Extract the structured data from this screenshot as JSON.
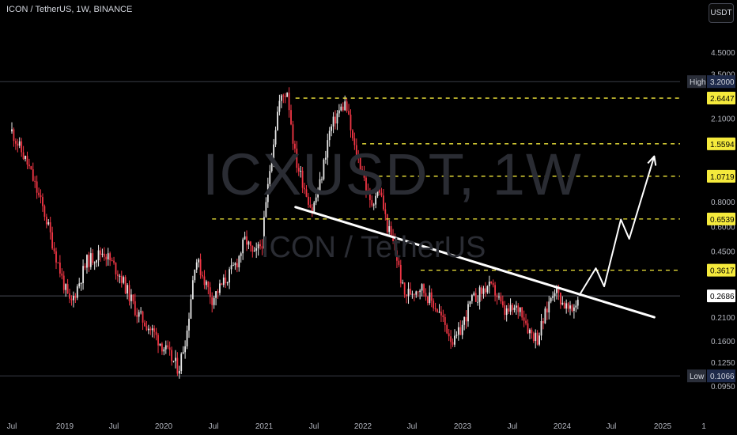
{
  "header": {
    "title": "ICON / TetherUS, 1W, BINANCE"
  },
  "currency_button": "USDT",
  "watermark": {
    "symbol": "ICXUSDT, 1W",
    "name": "ICON / TetherUS"
  },
  "colors": {
    "up": "#e8e8e8",
    "down": "#f23645",
    "level": "#f5ea3c",
    "trend": "#ffffff",
    "axis_text": "#b2b5be"
  },
  "chart_data": {
    "type": "candlestick",
    "title": "ICON / TetherUS, 1W, BINANCE",
    "price_scale": "log",
    "ylim": [
      0.085,
      5.6
    ],
    "y_tick_labels": [
      "4.5000",
      "3.5000",
      "2.6447",
      "2.1000",
      "1.5594",
      "1.0719",
      "0.8000",
      "0.6539",
      "0.6000",
      "0.4500",
      "0.3617",
      "0.2686",
      "0.2100",
      "0.1600",
      "0.1250",
      "0.1066",
      "0.0950"
    ],
    "x_tick_labels": [
      "Jul",
      "2019",
      "Jul",
      "2020",
      "Jul",
      "2021",
      "Jul",
      "2022",
      "Jul",
      "2023",
      "Jul",
      "2024",
      "Jul",
      "2025",
      "1"
    ],
    "high_label": {
      "tag": "High",
      "value": 3.2,
      "text": "3.2000"
    },
    "low_label": {
      "tag": "Low",
      "value": 0.1066,
      "text": "0.1066"
    },
    "last_price": {
      "value": 0.2686,
      "text": "0.2686"
    },
    "resistance_levels": [
      {
        "value": 2.6447,
        "text": "2.6447"
      },
      {
        "value": 1.5594,
        "text": "1.5594"
      },
      {
        "value": 1.0719,
        "text": "1.0719"
      },
      {
        "value": 0.6539,
        "text": "0.6539"
      },
      {
        "value": 0.3617,
        "text": "0.3617"
      }
    ],
    "trendline": [
      {
        "date": "2021-05",
        "value": 0.75
      },
      {
        "date": "2024-12",
        "value": 0.21
      }
    ],
    "projection_path": [
      {
        "date": "2024-03",
        "value": 0.27
      },
      {
        "date": "2024-05",
        "value": 0.37
      },
      {
        "date": "2024-06",
        "value": 0.3
      },
      {
        "date": "2024-08",
        "value": 0.65
      },
      {
        "date": "2024-09",
        "value": 0.52
      },
      {
        "date": "2024-12",
        "value": 1.35
      }
    ],
    "anchors": [
      [
        "2018-07",
        1.8
      ],
      [
        "2018-09",
        1.2
      ],
      [
        "2018-11",
        0.68
      ],
      [
        "2019-01",
        0.33
      ],
      [
        "2019-02",
        0.24
      ],
      [
        "2019-04",
        0.4
      ],
      [
        "2019-06",
        0.45
      ],
      [
        "2019-08",
        0.34
      ],
      [
        "2019-10",
        0.22
      ],
      [
        "2019-12",
        0.175
      ],
      [
        "2020-03",
        0.115
      ],
      [
        "2020-04",
        0.18
      ],
      [
        "2020-05",
        0.42
      ],
      [
        "2020-07",
        0.26
      ],
      [
        "2020-09",
        0.34
      ],
      [
        "2020-10",
        0.4
      ],
      [
        "2020-11",
        0.52
      ],
      [
        "2020-12",
        0.42
      ],
      [
        "2021-01",
        0.5
      ],
      [
        "2021-02",
        1.25
      ],
      [
        "2021-03",
        2.5
      ],
      [
        "2021-04",
        2.9
      ],
      [
        "2021-05",
        1.3
      ],
      [
        "2021-07",
        0.72
      ],
      [
        "2021-08",
        1.0
      ],
      [
        "2021-09",
        1.75
      ],
      [
        "2021-10",
        2.2
      ],
      [
        "2021-11",
        2.5
      ],
      [
        "2021-12",
        1.5
      ],
      [
        "2022-01",
        1.15
      ],
      [
        "2022-02",
        0.76
      ],
      [
        "2022-03",
        0.95
      ],
      [
        "2022-04",
        0.6
      ],
      [
        "2022-05",
        0.45
      ],
      [
        "2022-06",
        0.27
      ],
      [
        "2022-08",
        0.3
      ],
      [
        "2022-10",
        0.23
      ],
      [
        "2022-12",
        0.155
      ],
      [
        "2023-01",
        0.19
      ],
      [
        "2023-02",
        0.25
      ],
      [
        "2023-04",
        0.3
      ],
      [
        "2023-05",
        0.28
      ],
      [
        "2023-06",
        0.22
      ],
      [
        "2023-08",
        0.235
      ],
      [
        "2023-09",
        0.18
      ],
      [
        "2023-10",
        0.165
      ],
      [
        "2023-11",
        0.22
      ],
      [
        "2023-12",
        0.3
      ],
      [
        "2024-01",
        0.25
      ],
      [
        "2024-02",
        0.22
      ],
      [
        "2024-03",
        0.27
      ]
    ]
  }
}
